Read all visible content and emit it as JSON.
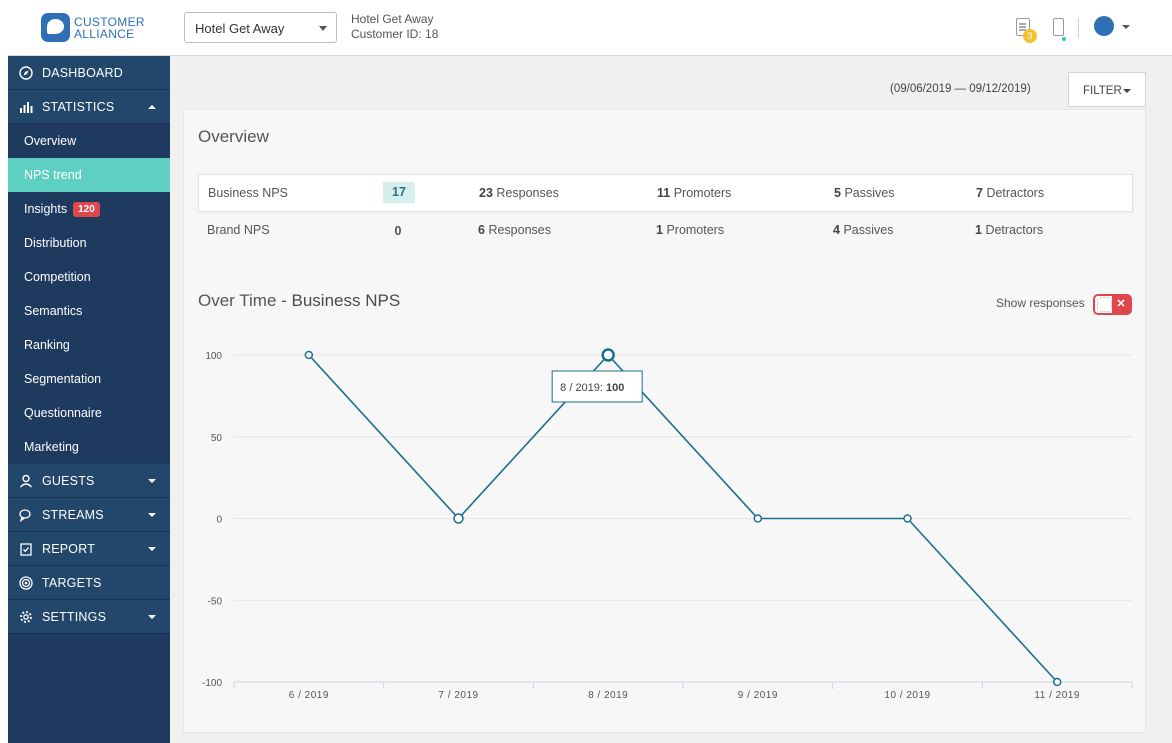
{
  "header": {
    "logo_line1": "CUSTOMER",
    "logo_line2": "ALLIANCE",
    "hotel_select_value": "Hotel Get Away",
    "hotel_name": "Hotel Get Away",
    "customer_id": "Customer ID: 18",
    "notification_count": "3",
    "colors": {
      "brand": "#2f6fb5",
      "badge": "#f2c230"
    }
  },
  "sidebar": {
    "dashboard": "DASHBOARD",
    "statistics": "STATISTICS",
    "sub_items": [
      {
        "label": "Overview"
      },
      {
        "label": "NPS trend",
        "active": true
      },
      {
        "label": "Insights",
        "badge": "120"
      },
      {
        "label": "Distribution"
      },
      {
        "label": "Competition"
      },
      {
        "label": "Semantics"
      },
      {
        "label": "Ranking"
      },
      {
        "label": "Segmentation"
      },
      {
        "label": "Questionnaire"
      },
      {
        "label": "Marketing"
      }
    ],
    "guests": "GUESTS",
    "streams": "STREAMS",
    "report": "REPORT",
    "targets": "TARGETS",
    "settings": "SETTINGS",
    "colors": {
      "bg": "#1e3a5f",
      "active": "#5ed0c3",
      "badge": "#e0464e"
    }
  },
  "toolbar": {
    "date_range": "(09/06/2019 — 09/12/2019)",
    "filter_label": "FILTER"
  },
  "overview": {
    "title": "Overview",
    "rows": [
      {
        "label": "Business NPS",
        "score": "17",
        "responses_n": "23",
        "responses_t": "Responses",
        "promoters_n": "11",
        "promoters_t": "Promoters",
        "passives_n": "5",
        "passives_t": "Passives",
        "detractors_n": "7",
        "detractors_t": "Detractors"
      },
      {
        "label": "Brand NPS",
        "score": "0",
        "responses_n": "6",
        "responses_t": "Responses",
        "promoters_n": "1",
        "promoters_t": "Promoters",
        "passives_n": "4",
        "passives_t": "Passives",
        "detractors_n": "1",
        "detractors_t": "Detractors"
      }
    ]
  },
  "chart_section": {
    "title_light": "Over Time - ",
    "title_strong": "Business NPS",
    "show_responses_label": "Show responses",
    "toggle_off_glyph": "✕",
    "tooltip_label": "8 / 2019: ",
    "tooltip_value": "100"
  },
  "chart_data": {
    "type": "line",
    "categories": [
      "6 / 2019",
      "7 / 2019",
      "8 / 2019",
      "9 / 2019",
      "10 / 2019",
      "11 / 2019"
    ],
    "values": [
      100,
      0,
      100,
      0,
      0,
      -100
    ],
    "yticks": [
      "100",
      "50",
      "0",
      "-50",
      "-100"
    ],
    "ylim": [
      -100,
      100
    ],
    "grid": true,
    "highlighted_index": 2,
    "line_color": "#1c6e8c"
  }
}
